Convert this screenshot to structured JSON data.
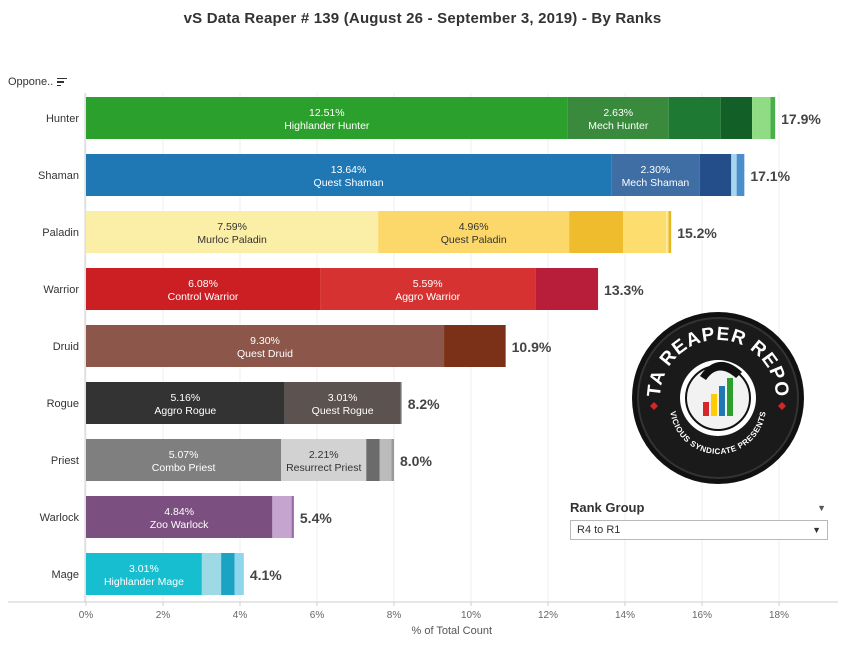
{
  "title": "vS Data Reaper #  139 (August 26 - September 3, 2019) - By Ranks",
  "sort_label": "Oppone..",
  "filter": {
    "title": "Rank Group",
    "value": "R4 to R1"
  },
  "logo": {
    "main_text": "DATA REAPER REPORT",
    "sub_text": "VICIOUS SYNDICATE PRESENTS"
  },
  "chart_data": {
    "type": "bar",
    "orientation": "horizontal",
    "stacked": true,
    "xlabel": "% of Total Count",
    "xlim": [
      0,
      19
    ],
    "x_ticks": [
      0,
      2,
      4,
      6,
      8,
      10,
      12,
      14,
      16,
      18
    ],
    "x_tick_labels": [
      "0%",
      "2%",
      "4%",
      "6%",
      "8%",
      "10%",
      "12%",
      "14%",
      "16%",
      "18%"
    ],
    "categories": [
      "Hunter",
      "Shaman",
      "Paladin",
      "Warrior",
      "Druid",
      "Rogue",
      "Priest",
      "Warlock",
      "Mage"
    ],
    "totals": [
      "17.9%",
      "17.1%",
      "15.2%",
      "13.3%",
      "10.9%",
      "8.2%",
      "8.0%",
      "5.4%",
      "4.1%"
    ],
    "rows": [
      {
        "segments": [
          {
            "value": 12.51,
            "color": "#2ca02c",
            "pct": "12.51%",
            "label": "Highlander Hunter"
          },
          {
            "value": 2.63,
            "color": "#3a8a3e",
            "pct": "2.63%",
            "label": "Mech Hunter"
          },
          {
            "value": 1.35,
            "color": "#1e7a32",
            "pct": "",
            "label": ""
          },
          {
            "value": 0.81,
            "color": "#125f28",
            "pct": "",
            "label": ""
          },
          {
            "value": 0.48,
            "color": "#8fdc85",
            "pct": "",
            "label": ""
          },
          {
            "value": 0.12,
            "color": "#4aae4a",
            "pct": "",
            "label": ""
          }
        ]
      },
      {
        "segments": [
          {
            "value": 13.64,
            "color": "#1f77b4",
            "pct": "13.64%",
            "label": "Quest Shaman"
          },
          {
            "value": 2.3,
            "color": "#3e6ea4",
            "pct": "2.30%",
            "label": "Mech Shaman"
          },
          {
            "value": 0.82,
            "color": "#234e8a",
            "pct": "",
            "label": ""
          },
          {
            "value": 0.14,
            "color": "#a6d5ee",
            "pct": "",
            "label": ""
          },
          {
            "value": 0.2,
            "color": "#4a8fcc",
            "pct": "",
            "label": ""
          }
        ]
      },
      {
        "segments": [
          {
            "value": 7.59,
            "color": "#fbeea6",
            "pct": "7.59%",
            "label": "Murloc Paladin"
          },
          {
            "value": 4.96,
            "color": "#fcd76a",
            "pct": "4.96%",
            "label": "Quest Paladin"
          },
          {
            "value": 1.4,
            "color": "#efbc2d",
            "pct": "",
            "label": ""
          },
          {
            "value": 1.12,
            "color": "#fcdd6d",
            "pct": "",
            "label": ""
          },
          {
            "value": 0.06,
            "color": "#fbe79a",
            "pct": "",
            "label": ""
          },
          {
            "value": 0.07,
            "color": "#e6b820",
            "pct": "",
            "label": ""
          }
        ]
      },
      {
        "segments": [
          {
            "value": 6.08,
            "color": "#cc1f24",
            "pct": "6.08%",
            "label": "Control Warrior"
          },
          {
            "value": 5.59,
            "color": "#d63232",
            "pct": "5.59%",
            "label": "Aggro Warrior"
          },
          {
            "value": 1.63,
            "color": "#b81d3a",
            "pct": "",
            "label": ""
          }
        ]
      },
      {
        "segments": [
          {
            "value": 9.3,
            "color": "#8c564b",
            "pct": "9.30%",
            "label": "Quest Druid"
          },
          {
            "value": 1.6,
            "color": "#7a3117",
            "pct": "",
            "label": ""
          }
        ]
      },
      {
        "segments": [
          {
            "value": 5.16,
            "color": "#333333",
            "pct": "5.16%",
            "label": "Aggro Rogue"
          },
          {
            "value": 3.01,
            "color": "#5c5250",
            "pct": "3.01%",
            "label": "Quest Rogue"
          },
          {
            "value": 0.03,
            "color": "#888888",
            "pct": "",
            "label": ""
          }
        ]
      },
      {
        "segments": [
          {
            "value": 5.07,
            "color": "#7f7f7f",
            "pct": "5.07%",
            "label": "Combo Priest"
          },
          {
            "value": 2.21,
            "color": "#d2d2d2",
            "pct": "2.21%",
            "label": "Resurrect Priest"
          },
          {
            "value": 0.35,
            "color": "#6b6b6b",
            "pct": "",
            "label": ""
          },
          {
            "value": 0.3,
            "color": "#bbbbbb",
            "pct": "",
            "label": ""
          },
          {
            "value": 0.07,
            "color": "#999999",
            "pct": "",
            "label": ""
          }
        ]
      },
      {
        "segments": [
          {
            "value": 4.84,
            "color": "#7b4f7f",
            "pct": "4.84%",
            "label": "Zoo Warlock"
          },
          {
            "value": 0.5,
            "color": "#c5a5cf",
            "pct": "",
            "label": ""
          },
          {
            "value": 0.06,
            "color": "#9a6aa8",
            "pct": "",
            "label": ""
          }
        ]
      },
      {
        "segments": [
          {
            "value": 3.01,
            "color": "#17becf",
            "pct": "3.01%",
            "label": "Highlander Mage"
          },
          {
            "value": 0.5,
            "color": "#9edae5",
            "pct": "",
            "label": ""
          },
          {
            "value": 0.35,
            "color": "#1aa3c2",
            "pct": "",
            "label": ""
          },
          {
            "value": 0.24,
            "color": "#8fd5ee",
            "pct": "",
            "label": ""
          }
        ]
      }
    ]
  }
}
